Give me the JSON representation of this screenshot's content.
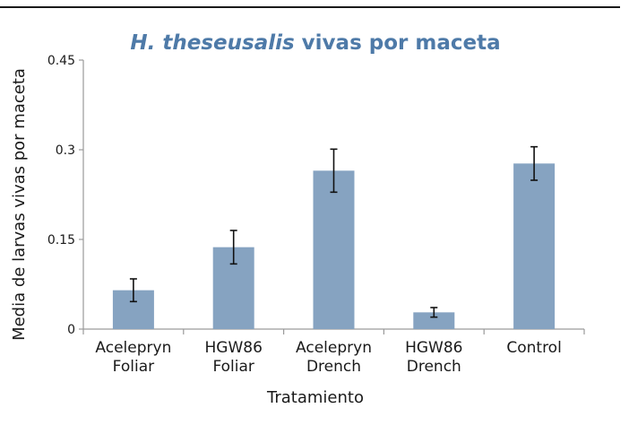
{
  "chart_data": {
    "type": "bar",
    "title_italic": "H. theseusalis",
    "title_rest": " vivas por maceta",
    "xlabel": "Tratamiento",
    "ylabel": "Media de larvas vivas por maceta",
    "ylim": [
      0,
      0.45
    ],
    "yticks": [
      0,
      0.15,
      0.3,
      0.45
    ],
    "ytick_labels": [
      "0",
      "0.15",
      "0.3",
      "0.45"
    ],
    "categories": [
      [
        "Acelepryn",
        "Foliar"
      ],
      [
        "HGW86",
        "Foliar"
      ],
      [
        "Acelepryn",
        "Drench"
      ],
      [
        "HGW86",
        "Drench"
      ],
      [
        "Control"
      ]
    ],
    "values": [
      0.065,
      0.137,
      0.265,
      0.028,
      0.277
    ],
    "error": [
      0.019,
      0.028,
      0.036,
      0.008,
      0.028
    ],
    "bar_color": "#86a3c1",
    "grid": false
  }
}
